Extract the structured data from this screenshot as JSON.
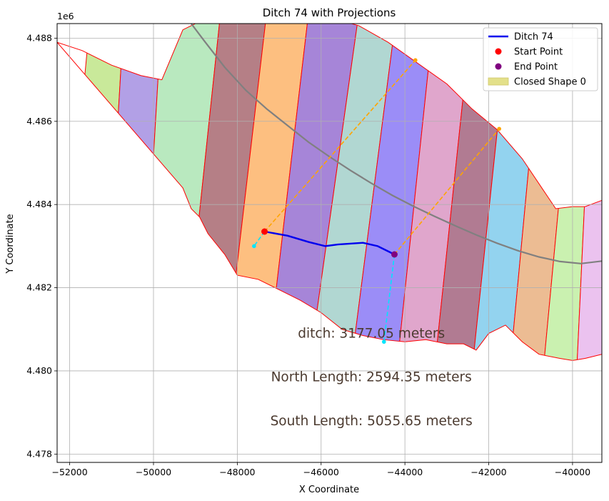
{
  "chart_data": {
    "type": "line",
    "title": "Ditch 74 with Projections",
    "xlabel": "X Coordinate",
    "ylabel": "Y Coordinate",
    "y_offset_label": "1e6",
    "xlim": [
      -52300,
      -39300
    ],
    "ylim": [
      4477800,
      4488350
    ],
    "x_ticks": [
      -52000,
      -50000,
      -48000,
      -46000,
      -44000,
      -42000,
      -40000
    ],
    "x_tick_labels": [
      "−52000",
      "−50000",
      "−48000",
      "−46000",
      "−44000",
      "−42000",
      "−40000"
    ],
    "y_ticks": [
      4478000,
      4480000,
      4482000,
      4484000,
      4486000,
      4488000
    ],
    "y_tick_labels": [
      "4.478",
      "4.480",
      "4.482",
      "4.484",
      "4.486",
      "4.488"
    ],
    "grid": true,
    "legend_placement": "top-right",
    "legend": [
      {
        "label": "Ditch 74",
        "kind": "line",
        "color": "#0000ee"
      },
      {
        "label": "Start Point",
        "kind": "marker",
        "color": "#ff0000"
      },
      {
        "label": "End Point",
        "kind": "marker",
        "color": "#800080"
      },
      {
        "label": "Closed Shape 0",
        "kind": "patch",
        "color": "#e3e08a"
      }
    ],
    "ditch": {
      "name": "Ditch 74",
      "color": "#0000ee",
      "x": [
        -47350,
        -46800,
        -46300,
        -45900,
        -45600,
        -45000,
        -44650,
        -44250
      ],
      "y": [
        4483350,
        4483250,
        4483100,
        4483000,
        4483040,
        4483080,
        4483000,
        4482800
      ]
    },
    "start_point": {
      "name": "Start Point",
      "x": -47350,
      "y": 4483350,
      "color": "#ff0000"
    },
    "end_point": {
      "name": "End Point",
      "x": -44250,
      "y": 4482800,
      "color": "#800080"
    },
    "projections": [
      {
        "color": "#ffa500",
        "style": "dashed",
        "x": [
          -47350,
          -43750
        ],
        "y": [
          4483350,
          4487470
        ]
      },
      {
        "color": "#ffa500",
        "style": "dashed",
        "x": [
          -44250,
          -41750
        ],
        "y": [
          4482800,
          4485820
        ]
      },
      {
        "color": "#00e5ff",
        "style": "dashed",
        "x": [
          -47350,
          -47600
        ],
        "y": [
          4483350,
          4483000
        ]
      },
      {
        "color": "#00e5ff",
        "style": "dashed",
        "x": [
          -44250,
          -44500
        ],
        "y": [
          4482800,
          4480700
        ]
      }
    ],
    "reference_line": {
      "color": "#808080",
      "x": [
        -49100,
        -48800,
        -48300,
        -47800,
        -47300,
        -46800,
        -46300,
        -45800,
        -45300,
        -44800,
        -44300,
        -43800,
        -43300,
        -42800,
        -42300,
        -41800,
        -41300,
        -40800,
        -40300,
        -39800,
        -39300
      ],
      "y": [
        4488350,
        4487950,
        4487300,
        4486750,
        4486300,
        4485900,
        4485500,
        4485150,
        4484820,
        4484510,
        4484220,
        4483960,
        4483720,
        4483490,
        4483270,
        4483070,
        4482890,
        4482740,
        4482630,
        4482580,
        4482640
      ]
    },
    "region": {
      "upper_x": [
        -52300,
        -51700,
        -51000,
        -50300,
        -49800,
        -49300,
        -48700,
        -48000,
        -47300,
        -46500,
        -45800,
        -45100,
        -44400,
        -43700,
        -43000,
        -42400,
        -41800,
        -41200,
        -40700,
        -40400,
        -40000,
        -39700,
        -39300
      ],
      "upper_y": [
        4487900,
        4487700,
        4487350,
        4487100,
        4487000,
        4488200,
        4488500,
        4488500,
        4488500,
        4488500,
        4488500,
        4488300,
        4487900,
        4487400,
        4486900,
        4486300,
        4485800,
        4485100,
        4484350,
        4483900,
        4483950,
        4483950,
        4484100
      ],
      "lower_x": [
        -39300,
        -39700,
        -40000,
        -40300,
        -40800,
        -41200,
        -41600,
        -42000,
        -42300,
        -42600,
        -43000,
        -43500,
        -44000,
        -44500,
        -45000,
        -45500,
        -46000,
        -46500,
        -47000,
        -47500,
        -48000,
        -48300,
        -48700,
        -48900,
        -49100,
        -49300
      ],
      "lower_y": [
        4480400,
        4480300,
        4480250,
        4480300,
        4480400,
        4480700,
        4481100,
        4480900,
        4480500,
        4480650,
        4480650,
        4480750,
        4480700,
        4480750,
        4480850,
        4481000,
        4481400,
        4481700,
        4481950,
        4482200,
        4482300,
        4482800,
        4483300,
        4483700,
        4483900,
        4484400
      ],
      "face_colors": [
        "#c9e99a",
        "#b2a0e6",
        "#b9e9bf",
        "#b57f86",
        "#fdbf80",
        "#a685d8",
        "#b1d7d2",
        "#9b8df7",
        "#e0a6cc",
        "#b17b92",
        "#93d3ef",
        "#ecbc93",
        "#caf1b0",
        "#ebc2ef",
        "#bea0c7"
      ],
      "slice_x_at_bottom": [
        -52300,
        -51200,
        -50300,
        -49300,
        -48300,
        -47300,
        -46300,
        -45300,
        -44200,
        -43300,
        -42400,
        -41500,
        -40700,
        -39900,
        -39300
      ],
      "slice_x_at_top": [
        -51500,
        -50700,
        -49800,
        -48400,
        -47300,
        -46300,
        -45100,
        -44200,
        -43300,
        -42400,
        -41500,
        -40700,
        -39900,
        -39500,
        -39300
      ],
      "edge_color": "#ff0000"
    },
    "annotations": [
      {
        "text": "ditch: 3177.05 meters",
        "x": -44800,
        "y": 4480900
      },
      {
        "text": "North Length: 2594.35 meters",
        "x": -44800,
        "y": 4479850
      },
      {
        "text": "South Length: 5055.65 meters",
        "x": -44800,
        "y": 4478800
      }
    ]
  }
}
